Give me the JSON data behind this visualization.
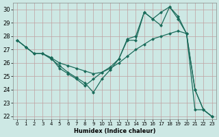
{
  "xlabel": "Humidex (Indice chaleur)",
  "ylabel": "",
  "background_color": "#cde8e4",
  "line_color": "#1a6b5a",
  "grid_color": "#c0a0a0",
  "xlim": [
    -0.5,
    23.5
  ],
  "ylim": [
    21.8,
    30.5
  ],
  "xticks": [
    0,
    1,
    2,
    3,
    4,
    5,
    6,
    7,
    8,
    9,
    10,
    11,
    12,
    13,
    14,
    15,
    16,
    17,
    18,
    19,
    20,
    21,
    22,
    23
  ],
  "yticks": [
    22,
    23,
    24,
    25,
    26,
    27,
    28,
    29,
    30
  ],
  "line1_x": [
    0,
    1,
    2,
    3,
    4,
    5,
    6,
    7,
    8,
    9,
    10,
    11,
    12,
    13,
    14,
    15,
    16,
    17,
    18,
    19,
    20,
    21,
    22,
    23
  ],
  "line1_y": [
    27.7,
    27.2,
    26.7,
    26.7,
    26.4,
    26.0,
    25.8,
    25.6,
    25.4,
    25.2,
    25.3,
    25.6,
    26.0,
    26.5,
    27.0,
    27.4,
    27.8,
    28.0,
    28.2,
    28.4,
    28.2,
    24.0,
    22.5,
    22.0
  ],
  "line2_x": [
    0,
    1,
    2,
    3,
    4,
    5,
    6,
    7,
    8,
    9,
    10,
    11,
    12,
    13,
    14,
    15,
    16,
    17,
    18,
    19,
    20,
    21,
    22,
    23
  ],
  "line2_y": [
    27.7,
    27.2,
    26.7,
    26.7,
    26.4,
    25.6,
    25.2,
    24.8,
    24.3,
    24.8,
    25.3,
    25.7,
    26.3,
    27.7,
    27.7,
    29.8,
    29.3,
    28.8,
    30.2,
    29.3,
    28.2,
    24.0,
    22.5,
    22.0
  ],
  "line3_x": [
    0,
    1,
    2,
    3,
    4,
    5,
    6,
    7,
    8,
    9,
    10,
    11,
    12,
    13,
    14,
    15,
    16,
    17,
    18,
    19,
    20,
    21,
    22,
    23
  ],
  "line3_y": [
    27.7,
    27.2,
    26.7,
    26.7,
    26.3,
    25.8,
    25.3,
    24.9,
    24.5,
    23.8,
    24.8,
    25.5,
    26.3,
    27.8,
    28.0,
    29.8,
    29.3,
    29.8,
    30.2,
    29.5,
    28.2,
    22.5,
    22.5,
    22.0
  ]
}
